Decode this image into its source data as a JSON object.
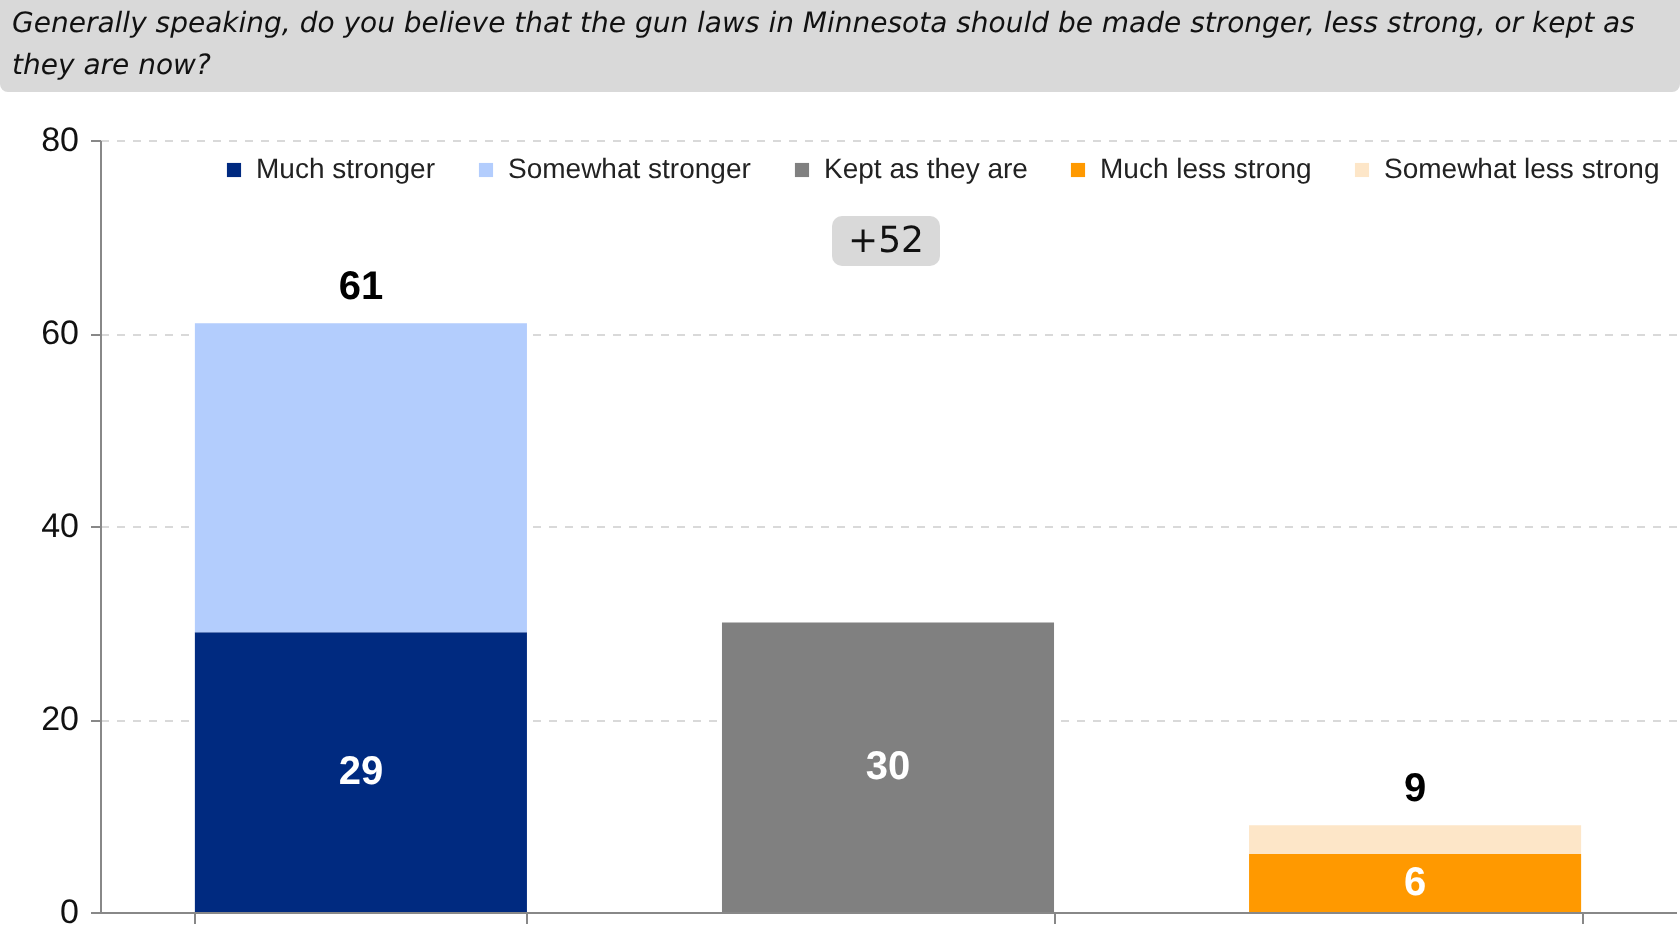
{
  "chart_data": {
    "type": "bar",
    "title": "Generally speaking, do you believe that the gun laws in Minnesota should be made stronger, less strong, or kept as they are now?",
    "categories": [
      null,
      null,
      null
    ],
    "stacked": true,
    "series": [
      {
        "name": "Much stronger",
        "color": "#002a80",
        "values": [
          29,
          null,
          null
        ],
        "value_labels": [
          "29",
          null,
          null
        ]
      },
      {
        "name": "Somewhat stronger",
        "color": "#b3cdfd",
        "values": [
          32,
          null,
          null
        ]
      },
      {
        "name": "Kept as they are",
        "color": "#808080",
        "values": [
          null,
          30,
          null
        ],
        "value_labels": [
          null,
          "30",
          null
        ]
      },
      {
        "name": "Much less strong",
        "color": "#ff9900",
        "values": [
          null,
          null,
          6
        ],
        "value_labels": [
          null,
          null,
          "6"
        ]
      },
      {
        "name": "Somewhat less strong",
        "color": "#fde6c8",
        "values": [
          null,
          null,
          3
        ]
      }
    ],
    "totals": [
      "61",
      null,
      "9"
    ],
    "annotations": [
      "+52"
    ],
    "ylim": [
      0,
      80
    ],
    "yticks": [
      0,
      20,
      40,
      60,
      80
    ],
    "grid": "y",
    "legend": "top",
    "tick_labels": "y"
  }
}
